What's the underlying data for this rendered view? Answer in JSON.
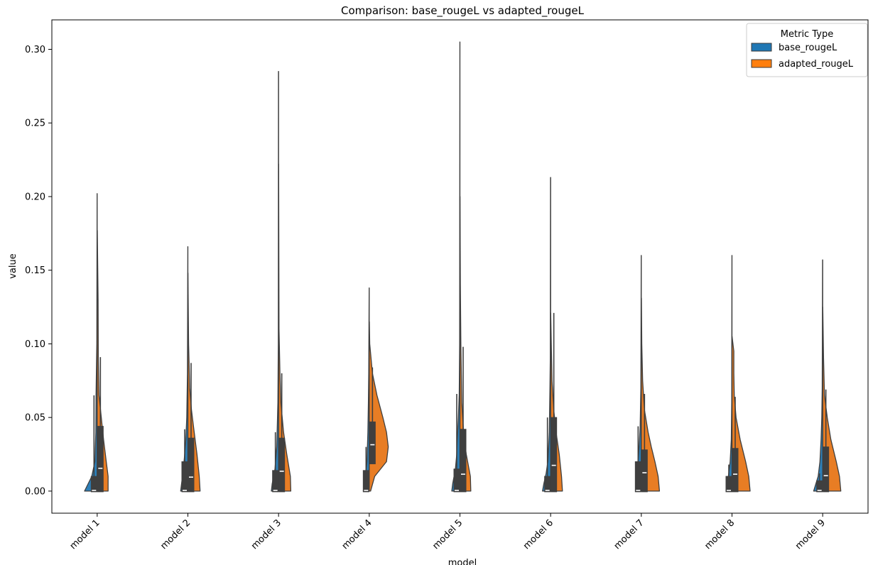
{
  "chart_data": {
    "type": "violin",
    "title": "Comparison: base_rougeL vs adapted_rougeL",
    "xlabel": "model",
    "ylabel": "value",
    "ylim": [
      -0.015,
      0.32
    ],
    "yticks": [
      0.0,
      0.05,
      0.1,
      0.15,
      0.2,
      0.25,
      0.3
    ],
    "ytick_labels": [
      "0.00",
      "0.05",
      "0.10",
      "0.15",
      "0.20",
      "0.25",
      "0.30"
    ],
    "categories": [
      "model 1",
      "model 2",
      "model 3",
      "model 4",
      "model 5",
      "model 6",
      "model 7",
      "model 8",
      "model 9"
    ],
    "legend": {
      "title": "Metric Type",
      "position": "upper right",
      "entries": [
        {
          "name": "base_rougeL",
          "color": "#1f77b4"
        },
        {
          "name": "adapted_rougeL",
          "color": "#ff7f0e"
        }
      ]
    },
    "series": [
      {
        "name": "base_rougeL",
        "color": "#2c7fb8",
        "groups": [
          {
            "max": 0.202,
            "q1": 0.0,
            "median": 0.0,
            "q3": 0.01,
            "whisker": 0.065,
            "profile": [
              [
                0.0,
                0.28
              ],
              [
                0.005,
                0.2
              ],
              [
                0.01,
                0.12
              ],
              [
                0.02,
                0.05
              ],
              [
                0.04,
                0.03
              ],
              [
                0.065,
                0.025
              ],
              [
                0.1,
                0.008
              ],
              [
                0.202,
                0.002
              ]
            ]
          },
          {
            "max": 0.166,
            "q1": 0.0,
            "median": 0.0,
            "q3": 0.02,
            "whisker": 0.042,
            "profile": [
              [
                0.0,
                0.16
              ],
              [
                0.005,
                0.14
              ],
              [
                0.015,
                0.1
              ],
              [
                0.025,
                0.07
              ],
              [
                0.035,
                0.045
              ],
              [
                0.05,
                0.025
              ],
              [
                0.08,
                0.01
              ],
              [
                0.166,
                0.002
              ]
            ]
          },
          {
            "max": 0.285,
            "q1": 0.0,
            "median": 0.0,
            "q3": 0.014,
            "whisker": 0.04,
            "profile": [
              [
                0.0,
                0.16
              ],
              [
                0.005,
                0.14
              ],
              [
                0.015,
                0.08
              ],
              [
                0.03,
                0.04
              ],
              [
                0.06,
                0.015
              ],
              [
                0.1,
                0.006
              ],
              [
                0.285,
                0.002
              ]
            ]
          },
          {
            "max": 0.138,
            "q1": 0.0,
            "median": 0.0,
            "q3": 0.014,
            "whisker": 0.03,
            "profile": [
              [
                0.0,
                0.13
              ],
              [
                0.005,
                0.11
              ],
              [
                0.01,
                0.08
              ],
              [
                0.02,
                0.05
              ],
              [
                0.04,
                0.03
              ],
              [
                0.06,
                0.02
              ],
              [
                0.08,
                0.012
              ],
              [
                0.1,
                0.008
              ],
              [
                0.138,
                0.002
              ]
            ]
          },
          {
            "max": 0.305,
            "q1": 0.0,
            "median": 0.0,
            "q3": 0.015,
            "whisker": 0.066,
            "profile": [
              [
                0.0,
                0.18
              ],
              [
                0.005,
                0.16
              ],
              [
                0.015,
                0.1
              ],
              [
                0.025,
                0.07
              ],
              [
                0.035,
                0.06
              ],
              [
                0.05,
                0.035
              ],
              [
                0.066,
                0.015
              ],
              [
                0.1,
                0.006
              ],
              [
                0.305,
                0.002
              ]
            ]
          },
          {
            "max": 0.213,
            "q1": 0.0,
            "median": 0.0,
            "q3": 0.01,
            "whisker": 0.05,
            "profile": [
              [
                0.0,
                0.18
              ],
              [
                0.005,
                0.15
              ],
              [
                0.012,
                0.1
              ],
              [
                0.02,
                0.06
              ],
              [
                0.04,
                0.03
              ],
              [
                0.07,
                0.015
              ],
              [
                0.09,
                0.008
              ],
              [
                0.213,
                0.002
              ]
            ]
          },
          {
            "max": 0.16,
            "q1": 0.0,
            "median": 0.0,
            "q3": 0.02,
            "whisker": 0.044,
            "profile": [
              [
                0.0,
                0.12
              ],
              [
                0.005,
                0.11
              ],
              [
                0.015,
                0.085
              ],
              [
                0.025,
                0.06
              ],
              [
                0.035,
                0.04
              ],
              [
                0.044,
                0.025
              ],
              [
                0.07,
                0.01
              ],
              [
                0.16,
                0.002
              ]
            ]
          },
          {
            "max": 0.16,
            "q1": 0.0,
            "median": 0.0,
            "q3": 0.01,
            "whisker": 0.018,
            "profile": [
              [
                0.0,
                0.13
              ],
              [
                0.005,
                0.11
              ],
              [
                0.01,
                0.08
              ],
              [
                0.02,
                0.04
              ],
              [
                0.035,
                0.015
              ],
              [
                0.06,
                0.006
              ],
              [
                0.16,
                0.002
              ]
            ]
          },
          {
            "max": 0.157,
            "q1": 0.0,
            "median": 0.0,
            "q3": 0.007,
            "whisker": 0.012,
            "profile": [
              [
                0.0,
                0.2
              ],
              [
                0.005,
                0.15
              ],
              [
                0.01,
                0.1
              ],
              [
                0.02,
                0.06
              ],
              [
                0.035,
                0.035
              ],
              [
                0.05,
                0.02
              ],
              [
                0.07,
                0.01
              ],
              [
                0.157,
                0.002
              ]
            ]
          }
        ]
      },
      {
        "name": "adapted_rougeL",
        "color": "#e87d24",
        "groups": [
          {
            "max": 0.177,
            "q1": 0.0,
            "median": 0.015,
            "q3": 0.044,
            "whisker": 0.091,
            "profile": [
              [
                0.0,
                0.24
              ],
              [
                0.01,
                0.24
              ],
              [
                0.02,
                0.2
              ],
              [
                0.035,
                0.14
              ],
              [
                0.05,
                0.09
              ],
              [
                0.065,
                0.04
              ],
              [
                0.09,
                0.025
              ],
              [
                0.13,
                0.02
              ],
              [
                0.177,
                0.002
              ]
            ]
          },
          {
            "max": 0.148,
            "q1": 0.0,
            "median": 0.009,
            "q3": 0.036,
            "whisker": 0.087,
            "profile": [
              [
                0.0,
                0.27
              ],
              [
                0.01,
                0.25
              ],
              [
                0.025,
                0.2
              ],
              [
                0.04,
                0.14
              ],
              [
                0.055,
                0.08
              ],
              [
                0.07,
                0.04
              ],
              [
                0.1,
                0.015
              ],
              [
                0.148,
                0.002
              ]
            ]
          },
          {
            "max": 0.222,
            "q1": 0.0,
            "median": 0.013,
            "q3": 0.036,
            "whisker": 0.08,
            "profile": [
              [
                0.0,
                0.27
              ],
              [
                0.01,
                0.26
              ],
              [
                0.025,
                0.18
              ],
              [
                0.04,
                0.11
              ],
              [
                0.06,
                0.05
              ],
              [
                0.08,
                0.03
              ],
              [
                0.11,
                0.01
              ],
              [
                0.222,
                0.002
              ]
            ]
          },
          {
            "max": 0.115,
            "q1": 0.019,
            "median": 0.031,
            "q3": 0.047,
            "whisker": 0.084,
            "profile": [
              [
                0.0,
                0.03
              ],
              [
                0.01,
                0.12
              ],
              [
                0.02,
                0.38
              ],
              [
                0.03,
                0.42
              ],
              [
                0.04,
                0.38
              ],
              [
                0.05,
                0.3
              ],
              [
                0.065,
                0.17
              ],
              [
                0.08,
                0.07
              ],
              [
                0.1,
                0.01
              ],
              [
                0.115,
                0.002
              ]
            ]
          },
          {
            "max": 0.2,
            "q1": 0.0,
            "median": 0.011,
            "q3": 0.042,
            "whisker": 0.098,
            "profile": [
              [
                0.0,
                0.24
              ],
              [
                0.01,
                0.23
              ],
              [
                0.025,
                0.14
              ],
              [
                0.04,
                0.08
              ],
              [
                0.06,
                0.04
              ],
              [
                0.1,
                0.02
              ],
              [
                0.14,
                0.01
              ],
              [
                0.2,
                0.002
              ]
            ]
          },
          {
            "max": 0.121,
            "q1": 0.0,
            "median": 0.017,
            "q3": 0.05,
            "whisker": 0.121,
            "profile": [
              [
                0.0,
                0.26
              ],
              [
                0.01,
                0.24
              ],
              [
                0.025,
                0.19
              ],
              [
                0.04,
                0.12
              ],
              [
                0.055,
                0.07
              ],
              [
                0.075,
                0.03
              ],
              [
                0.1,
                0.015
              ],
              [
                0.121,
                0.002
              ]
            ]
          },
          {
            "max": 0.131,
            "q1": 0.0,
            "median": 0.012,
            "q3": 0.028,
            "whisker": 0.066,
            "profile": [
              [
                0.0,
                0.4
              ],
              [
                0.01,
                0.37
              ],
              [
                0.02,
                0.3
              ],
              [
                0.03,
                0.22
              ],
              [
                0.04,
                0.15
              ],
              [
                0.055,
                0.07
              ],
              [
                0.075,
                0.03
              ],
              [
                0.1,
                0.01
              ],
              [
                0.131,
                0.002
              ]
            ]
          },
          {
            "max": 0.105,
            "q1": 0.0,
            "median": 0.011,
            "q3": 0.029,
            "whisker": 0.064,
            "profile": [
              [
                0.0,
                0.4
              ],
              [
                0.01,
                0.37
              ],
              [
                0.02,
                0.3
              ],
              [
                0.035,
                0.18
              ],
              [
                0.05,
                0.09
              ],
              [
                0.065,
                0.05
              ],
              [
                0.08,
                0.04
              ],
              [
                0.095,
                0.04
              ],
              [
                0.105,
                0.002
              ]
            ]
          },
          {
            "max": 0.125,
            "q1": 0.0,
            "median": 0.01,
            "q3": 0.03,
            "whisker": 0.069,
            "profile": [
              [
                0.0,
                0.4
              ],
              [
                0.01,
                0.37
              ],
              [
                0.02,
                0.3
              ],
              [
                0.035,
                0.18
              ],
              [
                0.05,
                0.1
              ],
              [
                0.065,
                0.04
              ],
              [
                0.09,
                0.02
              ],
              [
                0.125,
                0.002
              ]
            ]
          }
        ]
      }
    ]
  }
}
